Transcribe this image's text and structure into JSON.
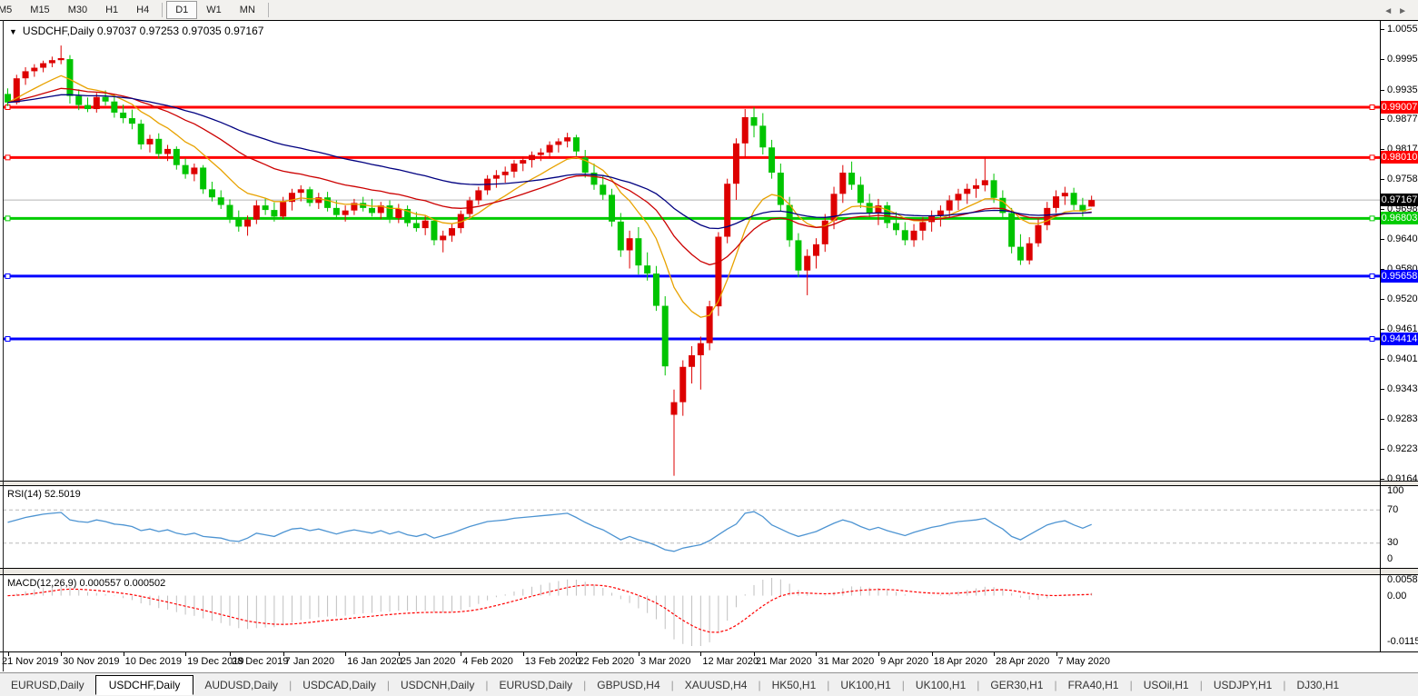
{
  "toolbar": {
    "timeframes": [
      "M5",
      "M15",
      "M30",
      "H1",
      "H4",
      "D1",
      "W1",
      "MN"
    ],
    "selected": "D1"
  },
  "chart": {
    "title": "USDCHF,Daily",
    "quote_open": "0.97037",
    "quote_high": "0.97253",
    "quote_low": "0.97035",
    "quote_close": "0.97167",
    "title_full": "USDCHF,Daily  0.97037 0.97253 0.97035 0.97167"
  },
  "price_axis": {
    "ticks": [
      "1.00555",
      "0.99955",
      "0.99355",
      "0.98770",
      "0.98170",
      "0.97585",
      "0.96985",
      "0.96400",
      "0.95800",
      "0.95200",
      "0.94615",
      "0.94015",
      "0.93430",
      "0.92830",
      "0.92230",
      "0.91645"
    ]
  },
  "levels": [
    {
      "label": "0.99007",
      "price": 0.99007,
      "color": "#ff0000"
    },
    {
      "label": "0.98010",
      "price": 0.9801,
      "color": "#ff0000"
    },
    {
      "label": "0.96803",
      "price": 0.96803,
      "color": "#00cc00"
    },
    {
      "label": "0.95658",
      "price": 0.95658,
      "color": "#0000ff"
    },
    {
      "label": "0.94414",
      "price": 0.94414,
      "color": "#0000ff"
    }
  ],
  "current_price": {
    "label": "0.97167",
    "value": 0.97167,
    "badge_color": "#000000"
  },
  "rsi_panel": {
    "label": "RSI(14) 52.5019",
    "axis_labels": [
      "100",
      "70",
      "30",
      "0"
    ],
    "level_high": 70,
    "level_low": 30
  },
  "macd_panel": {
    "label": "MACD(12,26,9) 0.000557 0.000502",
    "axis_labels": [
      "0.005818",
      "0.00",
      "-0.011514"
    ]
  },
  "x_axis": {
    "labels": [
      "21 Nov 2019",
      "30 Nov 2019",
      "10 Dec 2019",
      "19 Dec 2019",
      "28 Dec 2019",
      "7 Jan 2020",
      "16 Jan 2020",
      "25 Jan 2020",
      "4 Feb 2020",
      "13 Feb 2020",
      "22 Feb 2020",
      "3 Mar 2020",
      "12 Mar 2020",
      "21 Mar 2020",
      "31 Mar 2020",
      "9 Apr 2020",
      "18 Apr 2020",
      "28 Apr 2020",
      "7 May 2020"
    ],
    "indices": [
      0,
      6,
      13,
      20,
      25,
      31,
      38,
      44,
      51,
      58,
      64,
      71,
      78,
      84,
      91,
      98,
      104,
      111,
      118
    ]
  },
  "tabs": {
    "items": [
      "EURUSD,Daily",
      "USDCHF,Daily",
      "AUDUSD,Daily",
      "USDCAD,Daily",
      "USDCNH,Daily",
      "EURUSD,Daily",
      "GBPUSD,H4",
      "XAUUSD,H4",
      "HK50,H1",
      "UK100,H1",
      "UK100,H1",
      "GER30,H1",
      "FRA40,H1",
      "USOil,H1",
      "USDJPY,H1",
      "DJ30,H1"
    ],
    "active_index": 1,
    "left_arrow": "◄",
    "right_arrow": "►"
  },
  "colors": {
    "bull": "#dd0000",
    "bear": "#00c400",
    "ma_fast": "#e8a200",
    "ma_mid": "#cc0000",
    "ma_slow": "#000080",
    "rsi_line": "#4d94d2",
    "rsi_grid": "#b8b8b8",
    "macd_hist": "#c0c0c0",
    "macd_signal": "#ff0000",
    "current_line": "#b4b4b4"
  },
  "chart_data": {
    "type": "candlestick",
    "symbol": "USDCHF",
    "timeframe": "Daily",
    "ohlc": [
      [
        0.9927,
        0.9938,
        0.9903,
        0.991
      ],
      [
        0.991,
        0.9965,
        0.9906,
        0.9958
      ],
      [
        0.9958,
        0.998,
        0.9945,
        0.9972
      ],
      [
        0.9972,
        0.9986,
        0.9961,
        0.9979
      ],
      [
        0.9979,
        0.9993,
        0.997,
        0.9988
      ],
      [
        0.9988,
        1.0001,
        0.998,
        0.9994
      ],
      [
        0.9994,
        1.0023,
        0.9986,
        0.9998
      ],
      [
        0.9996,
        1.0004,
        0.9908,
        0.9923
      ],
      [
        0.9923,
        0.9936,
        0.9895,
        0.9905
      ],
      [
        0.9905,
        0.992,
        0.9891,
        0.9897
      ],
      [
        0.9897,
        0.9929,
        0.989,
        0.9921
      ],
      [
        0.9921,
        0.9934,
        0.9904,
        0.9912
      ],
      [
        0.9912,
        0.9926,
        0.988,
        0.989
      ],
      [
        0.989,
        0.9906,
        0.9869,
        0.9879
      ],
      [
        0.9879,
        0.9896,
        0.9857,
        0.9868
      ],
      [
        0.9868,
        0.9876,
        0.9817,
        0.9827
      ],
      [
        0.9827,
        0.9846,
        0.9811,
        0.9838
      ],
      [
        0.9838,
        0.9849,
        0.9799,
        0.9808
      ],
      [
        0.9808,
        0.9826,
        0.9794,
        0.9818
      ],
      [
        0.9818,
        0.9823,
        0.9777,
        0.9786
      ],
      [
        0.9786,
        0.9799,
        0.9759,
        0.9768
      ],
      [
        0.9768,
        0.9789,
        0.9754,
        0.9781
      ],
      [
        0.9781,
        0.9786,
        0.9729,
        0.9738
      ],
      [
        0.9738,
        0.9753,
        0.9714,
        0.9722
      ],
      [
        0.9722,
        0.9736,
        0.9699,
        0.9707
      ],
      [
        0.9707,
        0.9718,
        0.9671,
        0.968
      ],
      [
        0.968,
        0.9696,
        0.9654,
        0.9664
      ],
      [
        0.9664,
        0.9686,
        0.9646,
        0.9678
      ],
      [
        0.9678,
        0.9716,
        0.9669,
        0.9706
      ],
      [
        0.9706,
        0.9721,
        0.9687,
        0.9697
      ],
      [
        0.9697,
        0.9712,
        0.9674,
        0.9684
      ],
      [
        0.9684,
        0.9723,
        0.9679,
        0.9713
      ],
      [
        0.9713,
        0.9739,
        0.9696,
        0.9731
      ],
      [
        0.9731,
        0.9746,
        0.9714,
        0.9738
      ],
      [
        0.9738,
        0.9743,
        0.9704,
        0.9711
      ],
      [
        0.9711,
        0.9731,
        0.9699,
        0.9722
      ],
      [
        0.9722,
        0.9733,
        0.9694,
        0.9701
      ],
      [
        0.9701,
        0.9716,
        0.9679,
        0.9687
      ],
      [
        0.9687,
        0.9706,
        0.9674,
        0.9696
      ],
      [
        0.9696,
        0.9719,
        0.9687,
        0.9711
      ],
      [
        0.9711,
        0.9723,
        0.9694,
        0.9701
      ],
      [
        0.9701,
        0.9719,
        0.9684,
        0.9691
      ],
      [
        0.9691,
        0.9713,
        0.9679,
        0.9706
      ],
      [
        0.9706,
        0.9716,
        0.9671,
        0.9681
      ],
      [
        0.9681,
        0.9709,
        0.9671,
        0.9699
      ],
      [
        0.9699,
        0.9706,
        0.9664,
        0.9671
      ],
      [
        0.9671,
        0.9693,
        0.9654,
        0.9661
      ],
      [
        0.9661,
        0.9686,
        0.9647,
        0.9676
      ],
      [
        0.9676,
        0.9681,
        0.9627,
        0.9637
      ],
      [
        0.9637,
        0.9656,
        0.9613,
        0.9646
      ],
      [
        0.9646,
        0.9669,
        0.9634,
        0.9661
      ],
      [
        0.9661,
        0.9696,
        0.9651,
        0.9689
      ],
      [
        0.9689,
        0.9723,
        0.9681,
        0.9716
      ],
      [
        0.9716,
        0.9743,
        0.9707,
        0.9736
      ],
      [
        0.9736,
        0.9766,
        0.9727,
        0.9759
      ],
      [
        0.9759,
        0.9776,
        0.9741,
        0.9766
      ],
      [
        0.9766,
        0.9783,
        0.9751,
        0.9773
      ],
      [
        0.9773,
        0.9796,
        0.9761,
        0.9789
      ],
      [
        0.9789,
        0.9803,
        0.9774,
        0.9796
      ],
      [
        0.9796,
        0.9813,
        0.9781,
        0.9806
      ],
      [
        0.9806,
        0.9819,
        0.9794,
        0.9811
      ],
      [
        0.9811,
        0.9833,
        0.9799,
        0.9826
      ],
      [
        0.9826,
        0.9839,
        0.9811,
        0.9833
      ],
      [
        0.9833,
        0.985,
        0.9821,
        0.9841
      ],
      [
        0.9841,
        0.9846,
        0.9804,
        0.9813
      ],
      [
        0.9801,
        0.9816,
        0.9761,
        0.9771
      ],
      [
        0.9771,
        0.9789,
        0.9737,
        0.9747
      ],
      [
        0.9747,
        0.9766,
        0.9717,
        0.9727
      ],
      [
        0.9727,
        0.9739,
        0.9664,
        0.9674
      ],
      [
        0.9674,
        0.9691,
        0.9604,
        0.9617
      ],
      [
        0.9617,
        0.9656,
        0.9581,
        0.9641
      ],
      [
        0.9641,
        0.9663,
        0.9569,
        0.9587
      ],
      [
        0.9587,
        0.9613,
        0.9557,
        0.9571
      ],
      [
        0.9571,
        0.9586,
        0.9497,
        0.9507
      ],
      [
        0.9507,
        0.9526,
        0.9369,
        0.9387
      ],
      [
        0.9291,
        0.9341,
        0.917,
        0.9316
      ],
      [
        0.9316,
        0.9399,
        0.9289,
        0.9386
      ],
      [
        0.9386,
        0.9427,
        0.9353,
        0.9409
      ],
      [
        0.9409,
        0.9446,
        0.9341,
        0.9433
      ],
      [
        0.9433,
        0.9517,
        0.9419,
        0.9506
      ],
      [
        0.9506,
        0.9653,
        0.9487,
        0.9644
      ],
      [
        0.9644,
        0.9759,
        0.9631,
        0.9749
      ],
      [
        0.9749,
        0.9839,
        0.9717,
        0.9829
      ],
      [
        0.9829,
        0.9897,
        0.9801,
        0.9881
      ],
      [
        0.9881,
        0.9901,
        0.9841,
        0.9864
      ],
      [
        0.9864,
        0.9889,
        0.9807,
        0.9821
      ],
      [
        0.9821,
        0.9836,
        0.9759,
        0.9771
      ],
      [
        0.9771,
        0.9789,
        0.9694,
        0.9707
      ],
      [
        0.9707,
        0.9723,
        0.9624,
        0.9637
      ],
      [
        0.9637,
        0.9651,
        0.9564,
        0.9577
      ],
      [
        0.9577,
        0.9619,
        0.9528,
        0.9606
      ],
      [
        0.9606,
        0.9641,
        0.9581,
        0.9629
      ],
      [
        0.9629,
        0.9689,
        0.9614,
        0.9676
      ],
      [
        0.9676,
        0.9743,
        0.9659,
        0.9729
      ],
      [
        0.9729,
        0.9786,
        0.9711,
        0.9771
      ],
      [
        0.9771,
        0.9793,
        0.9737,
        0.9747
      ],
      [
        0.9747,
        0.9763,
        0.9701,
        0.9711
      ],
      [
        0.9711,
        0.9729,
        0.9681,
        0.9691
      ],
      [
        0.9691,
        0.9719,
        0.9667,
        0.9706
      ],
      [
        0.9706,
        0.9713,
        0.9661,
        0.9671
      ],
      [
        0.9671,
        0.9693,
        0.9647,
        0.9657
      ],
      [
        0.9657,
        0.9673,
        0.9627,
        0.9637
      ],
      [
        0.9637,
        0.9669,
        0.9624,
        0.9656
      ],
      [
        0.9656,
        0.9683,
        0.9637,
        0.9673
      ],
      [
        0.9673,
        0.9696,
        0.9654,
        0.9686
      ],
      [
        0.9686,
        0.9706,
        0.9664,
        0.9696
      ],
      [
        0.9696,
        0.9726,
        0.9681,
        0.9716
      ],
      [
        0.9716,
        0.9739,
        0.9697,
        0.9729
      ],
      [
        0.9729,
        0.9749,
        0.9709,
        0.9739
      ],
      [
        0.9739,
        0.9759,
        0.9721,
        0.9746
      ],
      [
        0.9746,
        0.9801,
        0.9734,
        0.9756
      ],
      [
        0.9756,
        0.9769,
        0.9711,
        0.9721
      ],
      [
        0.9721,
        0.9736,
        0.9681,
        0.9691
      ],
      [
        0.9691,
        0.9701,
        0.9611,
        0.9624
      ],
      [
        0.9624,
        0.9649,
        0.9588,
        0.9597
      ],
      [
        0.9597,
        0.9643,
        0.9589,
        0.9631
      ],
      [
        0.9631,
        0.9679,
        0.9624,
        0.9667
      ],
      [
        0.9667,
        0.9713,
        0.9657,
        0.9701
      ],
      [
        0.9701,
        0.9736,
        0.9691,
        0.9724
      ],
      [
        0.9724,
        0.9743,
        0.9707,
        0.9731
      ],
      [
        0.9731,
        0.9741,
        0.9697,
        0.9707
      ],
      [
        0.9707,
        0.9721,
        0.9684,
        0.9694
      ],
      [
        0.97037,
        0.97253,
        0.97035,
        0.97167
      ]
    ],
    "indicators": {
      "ma_periods": [
        10,
        25,
        50
      ],
      "rsi_period": 14,
      "rsi_current": 52.5019,
      "rsi": [
        55,
        58,
        61,
        63,
        65,
        66,
        67,
        58,
        56,
        55,
        58,
        56,
        53,
        52,
        50,
        45,
        47,
        44,
        46,
        42,
        40,
        42,
        38,
        37,
        36,
        33,
        32,
        36,
        42,
        40,
        38,
        43,
        47,
        48,
        45,
        47,
        44,
        41,
        44,
        46,
        44,
        42,
        45,
        41,
        44,
        40,
        38,
        41,
        36,
        39,
        42,
        46,
        50,
        53,
        56,
        57,
        58,
        60,
        61,
        62,
        63,
        64,
        65,
        66,
        61,
        55,
        50,
        46,
        40,
        34,
        38,
        34,
        31,
        27,
        22,
        20,
        24,
        26,
        28,
        33,
        40,
        47,
        53,
        66,
        68,
        62,
        52,
        47,
        42,
        38,
        41,
        44,
        49,
        54,
        58,
        55,
        50,
        46,
        49,
        45,
        42,
        39,
        43,
        46,
        49,
        51,
        54,
        56,
        57,
        58,
        60,
        53,
        47,
        38,
        34,
        40,
        46,
        52,
        55,
        57,
        52,
        48,
        52.5
      ],
      "macd_params": [
        12,
        26,
        9
      ],
      "macd_current": 0.000557,
      "macd_signal_current": 0.000502
    },
    "y_axis_range": [
      0.91627,
      1.00681
    ],
    "grid": false,
    "legend_position": "top-left"
  }
}
